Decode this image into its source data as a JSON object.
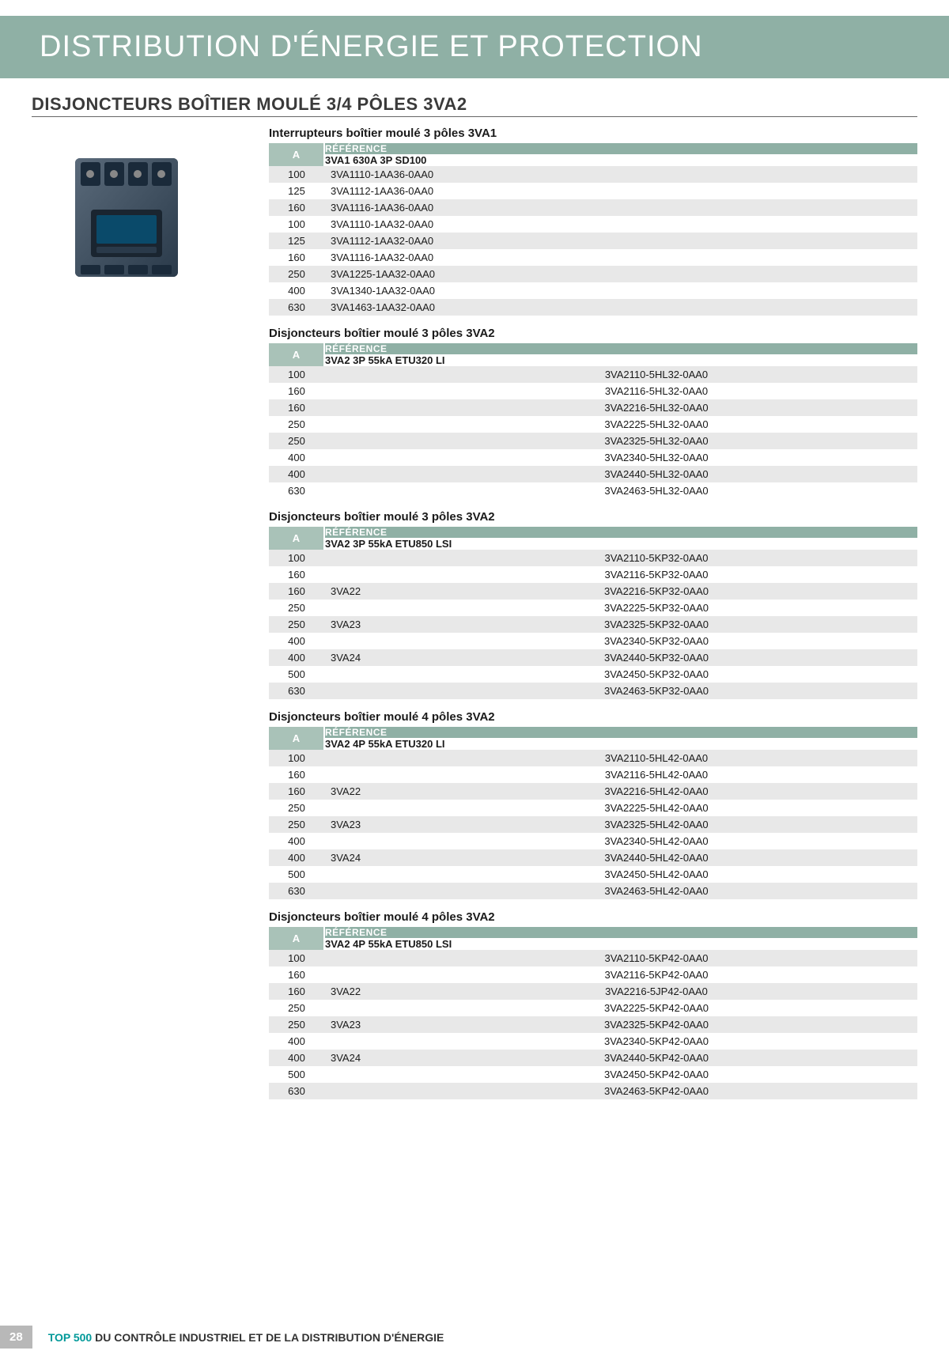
{
  "banner": "DISTRIBUTION D'ÉNERGIE ET PROTECTION",
  "section_title": "DISJONCTEURS BOÎTIER MOULÉ 3/4 PÔLES 3VA2",
  "colors": {
    "banner_bg": "#8fb0a5",
    "header_bg": "#8fb0a5",
    "a_bg": "#a9c2b8",
    "row_odd": "#e8e8e8",
    "row_even": "#ffffff",
    "footer_accent": "#009999",
    "page_bg": "#b8b8b8"
  },
  "tables": [
    {
      "title": "Interrupteurs boîtier moulé 3 pôles 3VA1",
      "a_label": "A",
      "ref_label": "RÉFÉRENCE",
      "subheader": "3VA1 630A 3P SD100",
      "layout": "two",
      "rows": [
        {
          "a": "100",
          "ref": "3VA1110-1AA36-0AA0"
        },
        {
          "a": "125",
          "ref": "3VA1112-1AA36-0AA0"
        },
        {
          "a": "160",
          "ref": "3VA1116-1AA36-0AA0"
        },
        {
          "a": "100",
          "ref": "3VA1110-1AA32-0AA0"
        },
        {
          "a": "125",
          "ref": "3VA1112-1AA32-0AA0"
        },
        {
          "a": "160",
          "ref": "3VA1116-1AA32-0AA0"
        },
        {
          "a": "250",
          "ref": "3VA1225-1AA32-0AA0"
        },
        {
          "a": "400",
          "ref": "3VA1340-1AA32-0AA0"
        },
        {
          "a": "630",
          "ref": "3VA1463-1AA32-0AA0"
        }
      ]
    },
    {
      "title": "Disjoncteurs boîtier moulé 3 pôles 3VA2",
      "a_label": "A",
      "ref_label": "RÉFÉRENCE",
      "subheader": "3VA2 3P 55kA ETU320 LI",
      "layout": "three",
      "rows": [
        {
          "a": "100",
          "mid": "",
          "ref": "3VA2110-5HL32-0AA0"
        },
        {
          "a": "160",
          "mid": "",
          "ref": "3VA2116-5HL32-0AA0"
        },
        {
          "a": "160",
          "mid": "",
          "ref": "3VA2216-5HL32-0AA0"
        },
        {
          "a": "250",
          "mid": "",
          "ref": "3VA2225-5HL32-0AA0"
        },
        {
          "a": "250",
          "mid": "",
          "ref": "3VA2325-5HL32-0AA0"
        },
        {
          "a": "400",
          "mid": "",
          "ref": "3VA2340-5HL32-0AA0"
        },
        {
          "a": "400",
          "mid": "",
          "ref": "3VA2440-5HL32-0AA0"
        },
        {
          "a": "630",
          "mid": "",
          "ref": "3VA2463-5HL32-0AA0"
        }
      ]
    },
    {
      "title": "Disjoncteurs boîtier moulé 3 pôles 3VA2",
      "a_label": "A",
      "ref_label": "RÉFÉRENCE",
      "subheader": "3VA2 3P 55kA ETU850 LSI",
      "layout": "three",
      "rows": [
        {
          "a": "100",
          "mid": "",
          "ref": "3VA2110-5KP32-0AA0"
        },
        {
          "a": "160",
          "mid": "",
          "ref": "3VA2116-5KP32-0AA0"
        },
        {
          "a": "160",
          "mid": "3VA22",
          "ref": "3VA2216-5KP32-0AA0"
        },
        {
          "a": "250",
          "mid": "",
          "ref": "3VA2225-5KP32-0AA0"
        },
        {
          "a": "250",
          "mid": "3VA23",
          "ref": "3VA2325-5KP32-0AA0"
        },
        {
          "a": "400",
          "mid": "",
          "ref": "3VA2340-5KP32-0AA0"
        },
        {
          "a": "400",
          "mid": "3VA24",
          "ref": "3VA2440-5KP32-0AA0"
        },
        {
          "a": "500",
          "mid": "",
          "ref": "3VA2450-5KP32-0AA0"
        },
        {
          "a": "630",
          "mid": "",
          "ref": "3VA2463-5KP32-0AA0"
        }
      ]
    },
    {
      "title": "Disjoncteurs boîtier moulé 4 pôles 3VA2",
      "a_label": "A",
      "ref_label": "RÉFÉRENCE",
      "subheader": "3VA2 4P 55kA ETU320 LI",
      "layout": "three",
      "rows": [
        {
          "a": "100",
          "mid": "",
          "ref": "3VA2110-5HL42-0AA0"
        },
        {
          "a": "160",
          "mid": "",
          "ref": "3VA2116-5HL42-0AA0"
        },
        {
          "a": "160",
          "mid": "3VA22",
          "ref": "3VA2216-5HL42-0AA0"
        },
        {
          "a": "250",
          "mid": "",
          "ref": "3VA2225-5HL42-0AA0"
        },
        {
          "a": "250",
          "mid": "3VA23",
          "ref": "3VA2325-5HL42-0AA0"
        },
        {
          "a": "400",
          "mid": "",
          "ref": "3VA2340-5HL42-0AA0"
        },
        {
          "a": "400",
          "mid": "3VA24",
          "ref": "3VA2440-5HL42-0AA0"
        },
        {
          "a": "500",
          "mid": "",
          "ref": "3VA2450-5HL42-0AA0"
        },
        {
          "a": "630",
          "mid": "",
          "ref": "3VA2463-5HL42-0AA0"
        }
      ]
    },
    {
      "title": "Disjoncteurs boîtier moulé 4 pôles 3VA2",
      "a_label": "A",
      "ref_label": "RÉFÉRENCE",
      "subheader": "3VA2 4P 55kA ETU850 LSI",
      "layout": "three",
      "rows": [
        {
          "a": "100",
          "mid": "",
          "ref": "3VA2110-5KP42-0AA0"
        },
        {
          "a": "160",
          "mid": "",
          "ref": "3VA2116-5KP42-0AA0"
        },
        {
          "a": "160",
          "mid": "3VA22",
          "ref": "3VA2216-5JP42-0AA0"
        },
        {
          "a": "250",
          "mid": "",
          "ref": "3VA2225-5KP42-0AA0"
        },
        {
          "a": "250",
          "mid": "3VA23",
          "ref": "3VA2325-5KP42-0AA0"
        },
        {
          "a": "400",
          "mid": "",
          "ref": "3VA2340-5KP42-0AA0"
        },
        {
          "a": "400",
          "mid": "3VA24",
          "ref": "3VA2440-5KP42-0AA0"
        },
        {
          "a": "500",
          "mid": "",
          "ref": "3VA2450-5KP42-0AA0"
        },
        {
          "a": "630",
          "mid": "",
          "ref": "3VA2463-5KP42-0AA0"
        }
      ]
    }
  ],
  "footer": {
    "page": "28",
    "text1": "TOP 500",
    "text2": " DU CONTRÔLE INDUSTRIEL ET DE LA DISTRIBUTION D'ÉNERGIE"
  }
}
